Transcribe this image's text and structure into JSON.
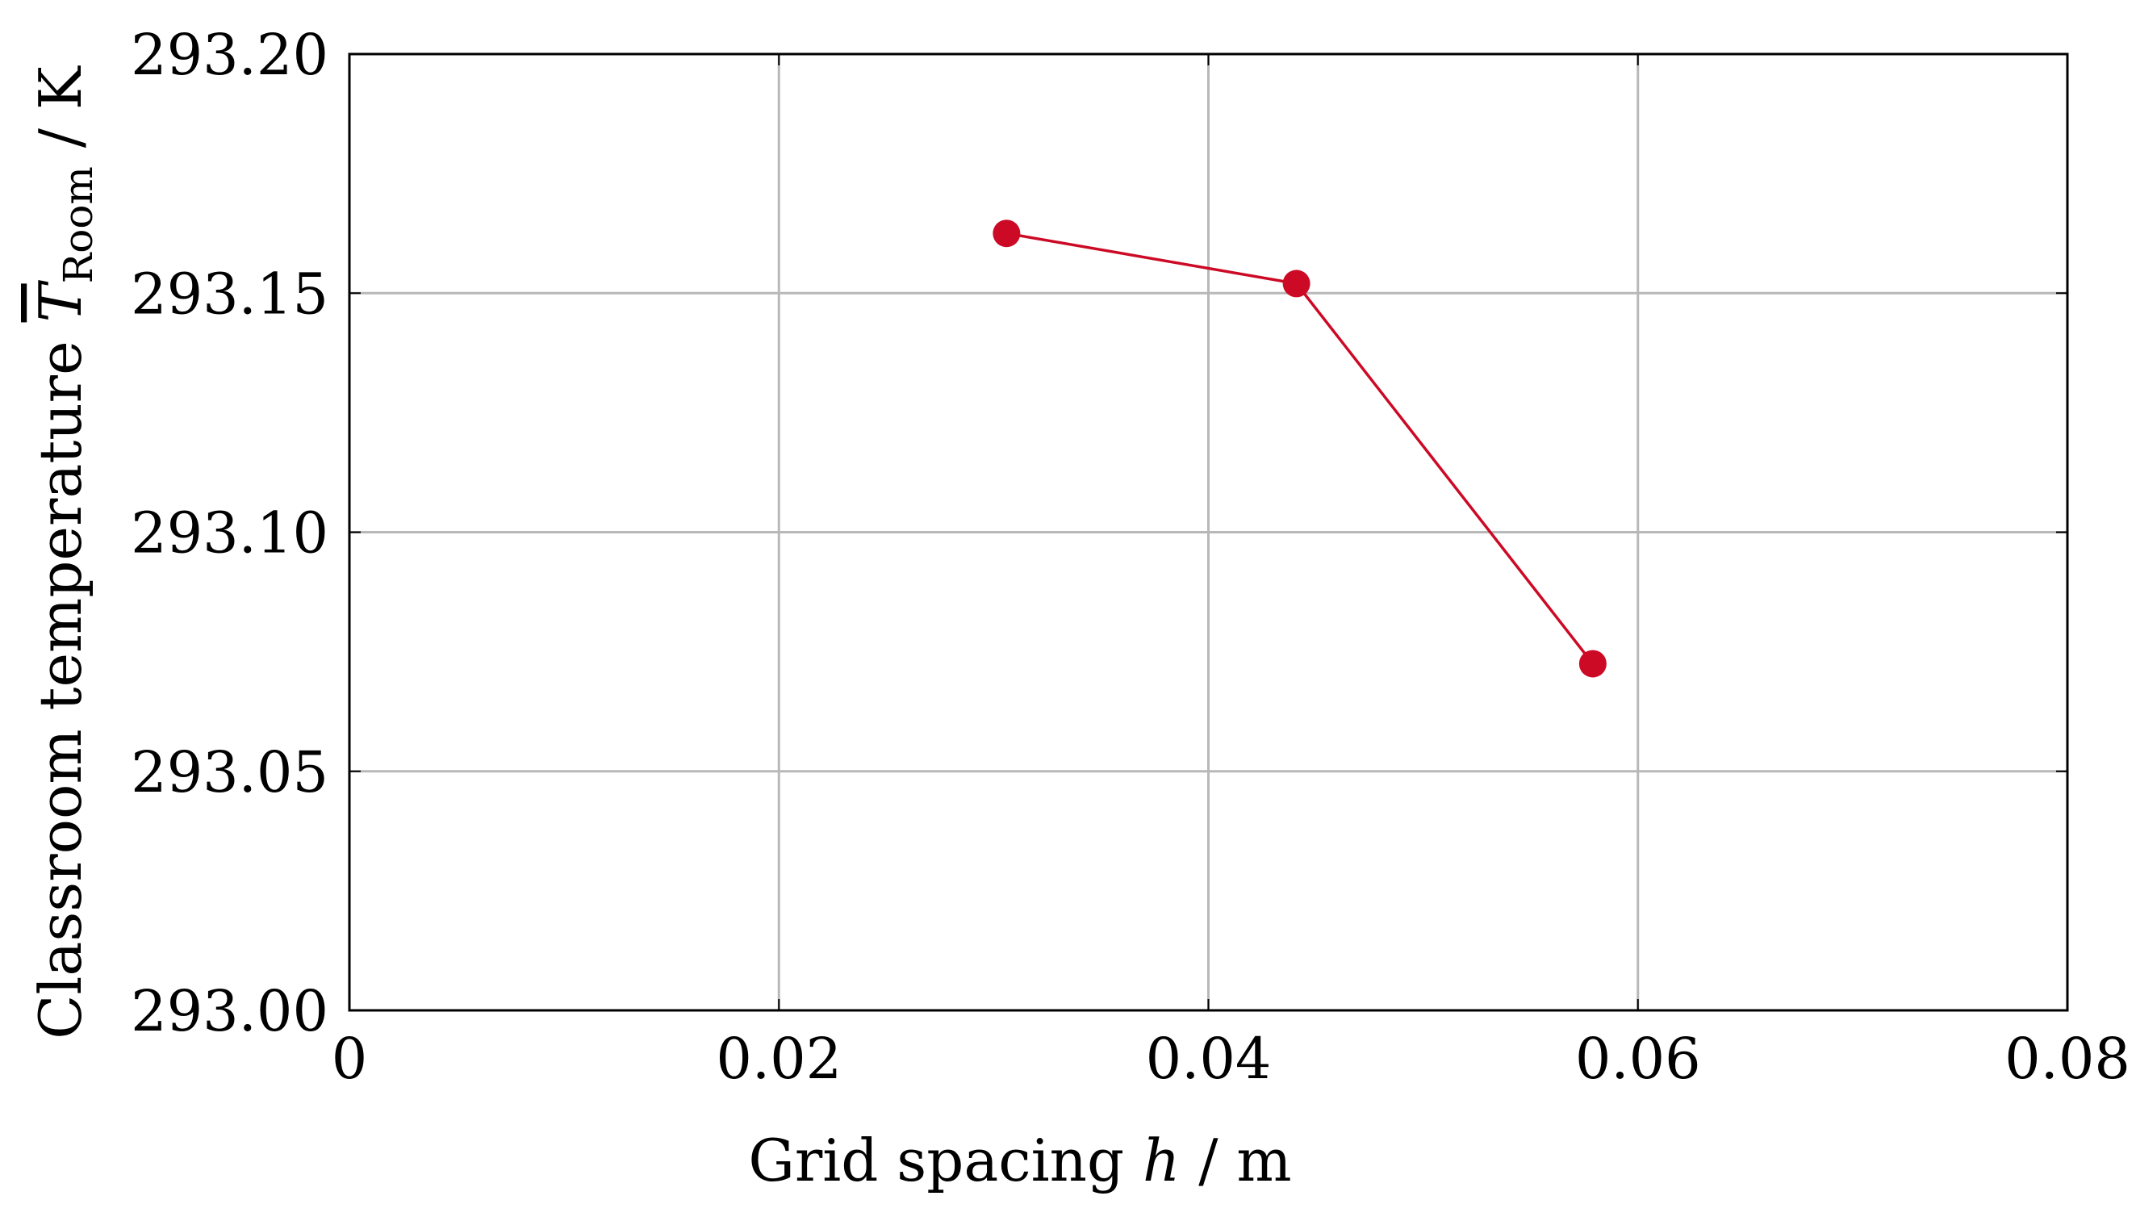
{
  "chart_data": {
    "type": "line",
    "x": [
      0.0306,
      0.0441,
      0.0579
    ],
    "series": [
      {
        "values": [
          293.1625,
          293.152,
          293.0725
        ],
        "color": "#cc0a25",
        "marker": "circle"
      }
    ],
    "xlabel": {
      "prefix": "Grid spacing ",
      "symbol": "h",
      "unit": " / m"
    },
    "ylabel": {
      "prefix": "Classroom temperature ",
      "symbol": "T",
      "subscript": "Room",
      "unit": " / K"
    },
    "xlim": [
      0,
      0.08
    ],
    "ylim": [
      293.0,
      293.2
    ],
    "xticks": [
      0,
      0.02,
      0.04,
      0.06,
      0.08
    ],
    "xtick_labels": [
      "0",
      "0.02",
      "0.04",
      "0.06",
      "0.08"
    ],
    "yticks": [
      293.0,
      293.05,
      293.1,
      293.15,
      293.2
    ],
    "ytick_labels": [
      "293.00",
      "293.05",
      "293.10",
      "293.15",
      "293.20"
    ],
    "grid": true,
    "colors": {
      "grid": "#b8b8b8",
      "frame": "#000000"
    }
  }
}
